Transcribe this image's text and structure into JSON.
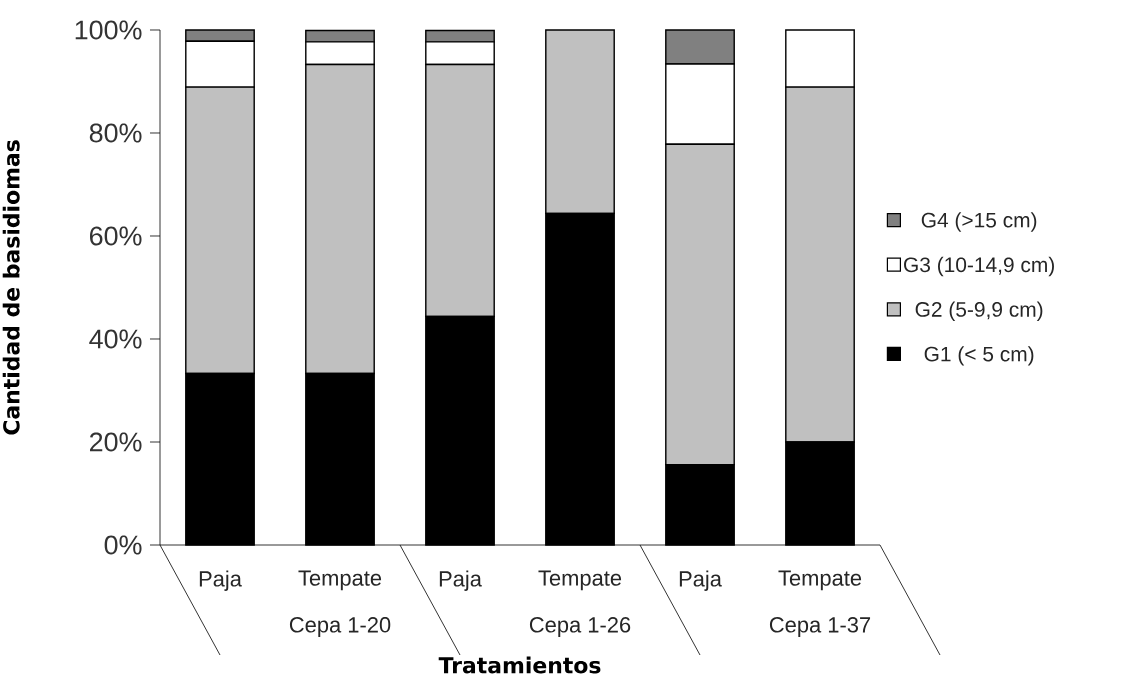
{
  "chart_data": {
    "type": "bar",
    "stacked": true,
    "xlabel": "Tratamientos",
    "ylabel": "Cantidad de basidiomas",
    "categories": [
      "Paja",
      "Tempate",
      "Paja",
      "Tempate",
      "Paja",
      "Tempate"
    ],
    "annotations": [
      "Cepa 1-20",
      "Cepa 1-26",
      "Cepa 1-37"
    ],
    "series": [
      {
        "name": "G1 (< 5 cm)",
        "color": "#000000",
        "values": [
          33.3,
          33.3,
          44.4,
          64.4,
          15.6,
          20.0
        ]
      },
      {
        "name": "G2 (5-9,9 cm)",
        "color": "#c0c0c0",
        "values": [
          55.6,
          60.0,
          48.9,
          35.6,
          62.2,
          68.9
        ]
      },
      {
        "name": "G3 (10-14,9 cm)",
        "color": "#ffffff",
        "values": [
          8.9,
          4.4,
          4.4,
          0,
          15.6,
          11.1
        ]
      },
      {
        "name": "G4 (>15 cm)",
        "color": "#808080",
        "values": [
          2.2,
          2.2,
          2.2,
          0,
          6.6,
          0
        ]
      }
    ],
    "ylim": [
      0,
      100
    ],
    "yticks": [
      {
        "value": 0,
        "label": "0%"
      },
      {
        "value": 20,
        "label": "20%"
      },
      {
        "value": 40,
        "label": "40%"
      },
      {
        "value": 60,
        "label": "60%"
      },
      {
        "value": 80,
        "label": "80%"
      },
      {
        "value": 100,
        "label": "100%"
      }
    ],
    "legend": "right",
    "grid": false
  }
}
